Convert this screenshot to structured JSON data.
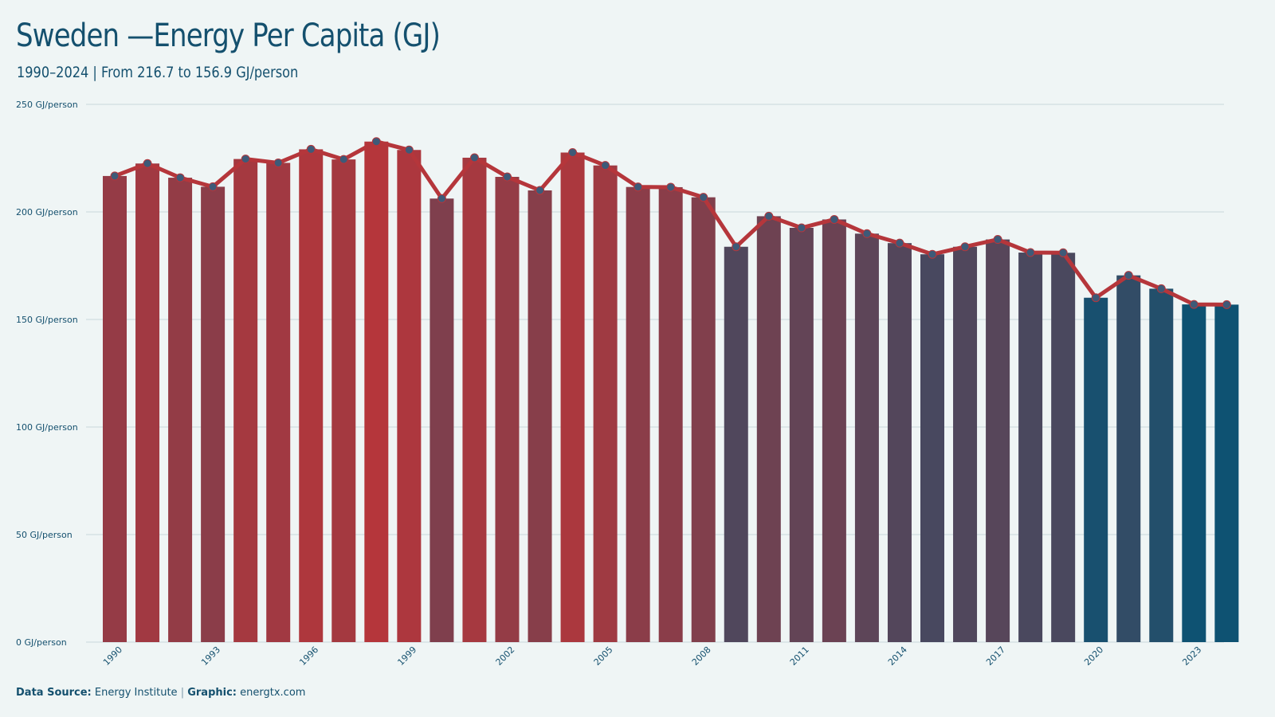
{
  "title": "Sweden —Energy Per Capita (GJ)",
  "subtitle": "1990–2024 | From 216.7 to 156.9 GJ/person",
  "footer": {
    "source_label": "Data Source:",
    "source_value": "Energy Institute",
    "separator": "|",
    "graphic_label": "Graphic:",
    "graphic_value": "energtx.com"
  },
  "colors": {
    "background": "#eff5f5",
    "title": "#14506e",
    "line": "#b5363b",
    "marker": "#3e5a78",
    "bar_high": "#b5363b",
    "bar_low": "#0e5272",
    "grid": "#d5e2e4"
  },
  "chart_data": {
    "type": "bar",
    "x": [
      1990,
      1991,
      1992,
      1993,
      1994,
      1995,
      1996,
      1997,
      1998,
      1999,
      2000,
      2001,
      2002,
      2003,
      2004,
      2005,
      2006,
      2007,
      2008,
      2009,
      2010,
      2011,
      2012,
      2013,
      2014,
      2015,
      2016,
      2017,
      2018,
      2019,
      2020,
      2021,
      2022,
      2023,
      2024
    ],
    "values": [
      216.7,
      222.5,
      215.9,
      211.7,
      224.6,
      222.8,
      229.1,
      224.4,
      232.7,
      228.8,
      206.2,
      225.2,
      216.3,
      210.0,
      227.6,
      221.6,
      211.6,
      211.5,
      206.8,
      183.8,
      198.0,
      192.6,
      196.5,
      189.9,
      185.5,
      180.3,
      183.8,
      187.2,
      181.1,
      181.0,
      160.1,
      170.5,
      164.3,
      157.0,
      156.9
    ],
    "overlay": "line with markers",
    "x_tick_labels": [
      "1990",
      "1993",
      "1996",
      "1999",
      "2002",
      "2005",
      "2008",
      "2011",
      "2014",
      "2017",
      "2020",
      "2023"
    ],
    "y_tick_labels": [
      "0 GJ/person",
      "50 GJ/person",
      "100 GJ/person",
      "150 GJ/person",
      "200 GJ/person",
      "250 GJ/person"
    ],
    "y_ticks": [
      0,
      50,
      100,
      150,
      200,
      250
    ],
    "ylim": [
      0,
      250
    ],
    "xlabel": "",
    "ylabel": "",
    "grid": true,
    "legend": "none"
  }
}
